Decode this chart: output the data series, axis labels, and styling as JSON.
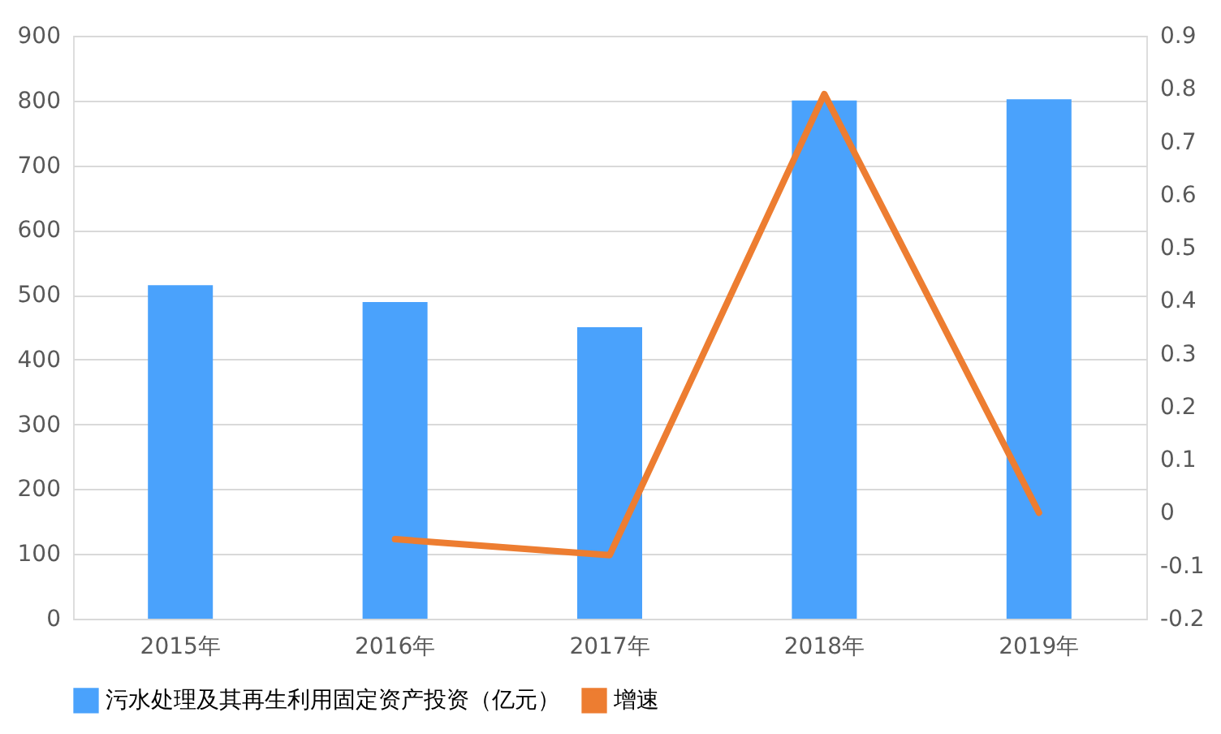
{
  "chart_data": {
    "type": "bar",
    "categories": [
      "2015年",
      "2016年",
      "2017年",
      "2018年",
      "2019年"
    ],
    "series": [
      {
        "name": "污水处理及其再生利用固定资产投资（亿元）",
        "color": "#4aa2fc",
        "values": [
          515,
          489,
          450,
          800,
          802
        ]
      },
      {
        "name": "增速",
        "type": "line",
        "axis": "y2",
        "color": "#ed7d31",
        "values": [
          null,
          -0.05,
          -0.08,
          0.79,
          0.0
        ]
      }
    ],
    "ylim": [
      0,
      900
    ],
    "yticks": [
      0,
      100,
      200,
      300,
      400,
      500,
      600,
      700,
      800,
      900
    ],
    "y2lim": [
      -0.2,
      0.9
    ],
    "y2ticks": [
      -0.2,
      -0.1,
      0,
      0.1,
      0.2,
      0.3,
      0.4,
      0.5,
      0.6,
      0.7,
      0.8,
      0.9
    ],
    "grid": "y",
    "legend": "bottom"
  }
}
